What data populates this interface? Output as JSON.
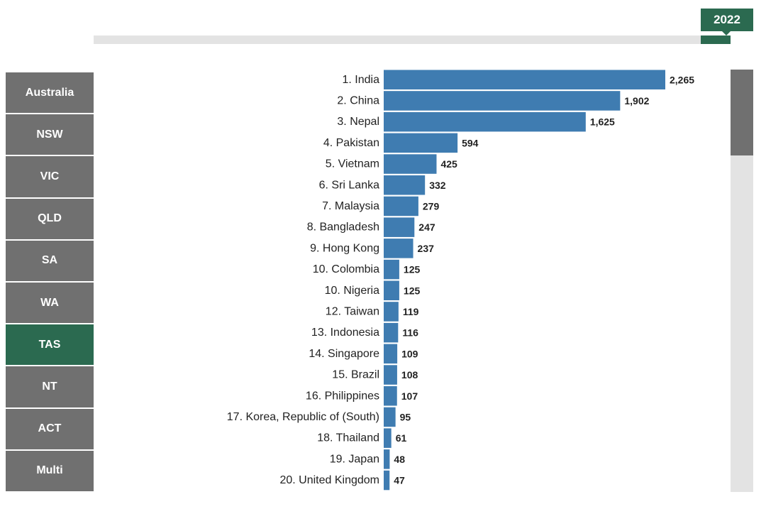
{
  "timeline": {
    "year": "2022"
  },
  "regions": [
    {
      "label": "Australia",
      "active": false
    },
    {
      "label": "NSW",
      "active": false
    },
    {
      "label": "VIC",
      "active": false
    },
    {
      "label": "QLD",
      "active": false
    },
    {
      "label": "SA",
      "active": false
    },
    {
      "label": "WA",
      "active": false
    },
    {
      "label": "TAS",
      "active": true
    },
    {
      "label": "NT",
      "active": false
    },
    {
      "label": "ACT",
      "active": false
    },
    {
      "label": "Multi",
      "active": false
    }
  ],
  "colors": {
    "bar": "#3f7cb1",
    "accent": "#2b6a50",
    "button": "#707070",
    "track": "#e3e3e3"
  },
  "chart_data": {
    "type": "bar",
    "orientation": "horizontal",
    "categories": [
      "1. India",
      "2. China",
      "3. Nepal",
      "4. Pakistan",
      "5. Vietnam",
      "6. Sri Lanka",
      "7. Malaysia",
      "8. Bangladesh",
      "9. Hong Kong",
      "10. Colombia",
      "10. Nigeria",
      "12. Taiwan",
      "13. Indonesia",
      "14. Singapore",
      "15. Brazil",
      "16. Philippines",
      "17. Korea, Republic of (South)",
      "18. Thailand",
      "19. Japan",
      "20. United Kingdom"
    ],
    "values": [
      2265,
      1902,
      1625,
      594,
      425,
      332,
      279,
      247,
      237,
      125,
      125,
      119,
      116,
      109,
      108,
      107,
      95,
      61,
      48,
      47
    ],
    "value_labels": [
      "2,265",
      "1,902",
      "1,625",
      "594",
      "425",
      "332",
      "279",
      "247",
      "237",
      "125",
      "125",
      "119",
      "116",
      "109",
      "108",
      "107",
      "95",
      "61",
      "48",
      "47"
    ],
    "xlim": [
      0,
      2265
    ],
    "grid": false,
    "legend": "none"
  }
}
